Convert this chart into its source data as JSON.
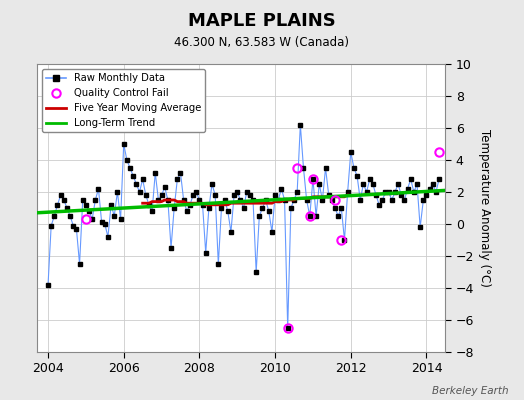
{
  "title": "MAPLE PLAINS",
  "subtitle": "46.300 N, 63.583 W (Canada)",
  "ylabel": "Temperature Anomaly (°C)",
  "watermark": "Berkeley Earth",
  "xlim": [
    2003.7,
    2014.5
  ],
  "ylim": [
    -8,
    10
  ],
  "yticks": [
    -8,
    -6,
    -4,
    -2,
    0,
    2,
    4,
    6,
    8,
    10
  ],
  "xticks": [
    2004,
    2006,
    2008,
    2010,
    2012,
    2014
  ],
  "bg_color": "#e8e8e8",
  "plot_bg_color": "#ffffff",
  "grid_color": "#cccccc",
  "raw_line_color": "#6699ff",
  "raw_dot_color": "#000000",
  "ma_color": "#cc0000",
  "trend_color": "#00bb00",
  "qc_color": "#ff00ff",
  "raw_x": [
    2004.0,
    2004.083,
    2004.167,
    2004.25,
    2004.333,
    2004.417,
    2004.5,
    2004.583,
    2004.667,
    2004.75,
    2004.833,
    2004.917,
    2005.0,
    2005.083,
    2005.167,
    2005.25,
    2005.333,
    2005.417,
    2005.5,
    2005.583,
    2005.667,
    2005.75,
    2005.833,
    2005.917,
    2006.0,
    2006.083,
    2006.167,
    2006.25,
    2006.333,
    2006.417,
    2006.5,
    2006.583,
    2006.667,
    2006.75,
    2006.833,
    2006.917,
    2007.0,
    2007.083,
    2007.167,
    2007.25,
    2007.333,
    2007.417,
    2007.5,
    2007.583,
    2007.667,
    2007.75,
    2007.833,
    2007.917,
    2008.0,
    2008.083,
    2008.167,
    2008.25,
    2008.333,
    2008.417,
    2008.5,
    2008.583,
    2008.667,
    2008.75,
    2008.833,
    2008.917,
    2009.0,
    2009.083,
    2009.167,
    2009.25,
    2009.333,
    2009.417,
    2009.5,
    2009.583,
    2009.667,
    2009.75,
    2009.833,
    2009.917,
    2010.0,
    2010.083,
    2010.167,
    2010.25,
    2010.333,
    2010.417,
    2010.5,
    2010.583,
    2010.667,
    2010.75,
    2010.833,
    2010.917,
    2011.0,
    2011.083,
    2011.167,
    2011.25,
    2011.333,
    2011.417,
    2011.5,
    2011.583,
    2011.667,
    2011.75,
    2011.833,
    2011.917,
    2012.0,
    2012.083,
    2012.167,
    2012.25,
    2012.333,
    2012.417,
    2012.5,
    2012.583,
    2012.667,
    2012.75,
    2012.833,
    2012.917,
    2013.0,
    2013.083,
    2013.167,
    2013.25,
    2013.333,
    2013.417,
    2013.5,
    2013.583,
    2013.667,
    2013.75,
    2013.833,
    2013.917,
    2014.0,
    2014.083,
    2014.167,
    2014.25,
    2014.333
  ],
  "raw_y": [
    -3.8,
    -0.1,
    0.5,
    1.2,
    1.8,
    1.5,
    1.0,
    0.5,
    -0.1,
    -0.3,
    -2.5,
    1.5,
    1.2,
    0.8,
    0.3,
    1.5,
    2.2,
    0.1,
    0.0,
    -0.8,
    1.2,
    0.5,
    2.0,
    0.3,
    5.0,
    4.0,
    3.5,
    3.0,
    2.5,
    2.0,
    2.8,
    1.8,
    1.2,
    0.8,
    3.2,
    1.5,
    1.8,
    2.3,
    1.5,
    -1.5,
    1.0,
    2.8,
    3.2,
    1.5,
    0.8,
    1.2,
    1.8,
    2.0,
    1.5,
    1.2,
    -1.8,
    1.0,
    2.5,
    1.8,
    -2.5,
    1.0,
    1.5,
    0.8,
    -0.5,
    1.8,
    2.0,
    1.5,
    1.0,
    2.0,
    1.8,
    1.5,
    -3.0,
    0.5,
    1.0,
    1.5,
    0.8,
    -0.5,
    1.8,
    1.5,
    2.2,
    1.5,
    -6.5,
    1.0,
    1.5,
    2.0,
    6.2,
    3.5,
    1.5,
    0.5,
    2.8,
    0.5,
    2.5,
    1.5,
    3.5,
    1.8,
    1.5,
    1.0,
    0.5,
    1.0,
    -1.0,
    2.0,
    4.5,
    3.5,
    3.0,
    1.5,
    2.5,
    2.0,
    2.8,
    2.5,
    1.8,
    1.2,
    1.5,
    2.0,
    2.0,
    1.5,
    2.0,
    2.5,
    1.8,
    1.5,
    2.2,
    2.8,
    2.0,
    2.5,
    -0.2,
    1.5,
    1.8,
    2.2,
    2.5,
    2.0,
    2.8
  ],
  "qc_x": [
    2005.0,
    2010.333,
    2010.583,
    2010.917,
    2011.0,
    2011.583,
    2011.75,
    2014.333
  ],
  "qc_y": [
    0.3,
    -6.5,
    3.5,
    0.5,
    2.8,
    1.5,
    -1.0,
    4.5
  ],
  "ma_x": [
    2006.5,
    2006.583,
    2006.667,
    2006.75,
    2006.833,
    2006.917,
    2007.0,
    2007.083,
    2007.167,
    2007.25,
    2007.333,
    2007.417,
    2007.5,
    2007.583,
    2007.667,
    2007.75,
    2007.833,
    2007.917,
    2008.0,
    2008.083,
    2008.167,
    2008.25,
    2008.333,
    2008.417,
    2008.5,
    2008.583,
    2008.667,
    2008.75,
    2008.833,
    2008.917,
    2009.0,
    2009.083,
    2009.167,
    2009.25,
    2009.333,
    2009.417,
    2009.5,
    2009.583,
    2009.667,
    2009.75,
    2009.833,
    2009.917,
    2010.0,
    2010.083,
    2010.167,
    2010.25,
    2010.333,
    2010.417,
    2010.5,
    2010.583,
    2010.667,
    2010.75,
    2010.833,
    2010.917,
    2011.0,
    2011.083,
    2011.167,
    2011.25,
    2011.333,
    2011.417,
    2011.5,
    2011.583,
    2011.667,
    2011.75,
    2011.833,
    2011.917
  ],
  "ma_y": [
    1.3,
    1.3,
    1.3,
    1.4,
    1.4,
    1.4,
    1.4,
    1.5,
    1.5,
    1.5,
    1.5,
    1.4,
    1.4,
    1.4,
    1.3,
    1.3,
    1.3,
    1.3,
    1.3,
    1.3,
    1.2,
    1.2,
    1.2,
    1.2,
    1.2,
    1.2,
    1.2,
    1.2,
    1.3,
    1.3,
    1.3,
    1.3,
    1.3,
    1.3,
    1.3,
    1.3,
    1.3,
    1.3,
    1.3,
    1.3,
    1.3,
    1.3,
    1.4,
    1.4,
    1.4,
    1.5,
    1.5,
    1.5,
    1.5,
    1.6,
    1.6,
    1.6,
    1.6,
    1.6,
    1.7,
    1.7,
    1.7,
    1.7,
    1.7,
    1.7,
    1.7,
    1.7,
    1.7,
    1.7,
    1.7,
    1.8
  ],
  "trend_x": [
    2003.7,
    2014.5
  ],
  "trend_y": [
    0.7,
    2.1
  ]
}
